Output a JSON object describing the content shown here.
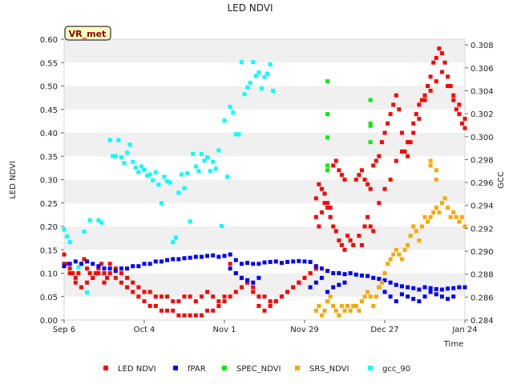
{
  "chart_data": {
    "type": "scatter",
    "title": "LED NDVI",
    "site_label": "VR_met",
    "xlabel": "Time",
    "ylabel_left": "LED NDVI",
    "ylabel_right": "GCC",
    "x_unit": "days since Sep 6",
    "xlim": [
      0,
      140
    ],
    "ylim_left": [
      0.0,
      0.6
    ],
    "ylim_right": [
      0.284,
      0.3085
    ],
    "x_ticks": [
      {
        "label": "Sep 6",
        "day": 0
      },
      {
        "label": "Oct 4",
        "day": 28
      },
      {
        "label": "Nov 1",
        "day": 56
      },
      {
        "label": "Nov 29",
        "day": 84
      },
      {
        "label": "Dec 27",
        "day": 112
      },
      {
        "label": "Jan 24",
        "day": 140
      }
    ],
    "y_ticks_left": [
      0.0,
      0.05,
      0.1,
      0.15,
      0.2,
      0.25,
      0.3,
      0.35,
      0.4,
      0.45,
      0.5,
      0.55,
      0.6
    ],
    "y_ticks_left_labels": [
      "0.00",
      "0.05",
      "0.10",
      "0.15",
      "0.20",
      "0.25",
      "0.30",
      "0.35",
      "0.40",
      "0.45",
      "0.50",
      "0.55",
      "0.60"
    ],
    "y_ticks_right": [
      0.284,
      0.286,
      0.288,
      0.29,
      0.292,
      0.294,
      0.296,
      0.298,
      0.3,
      0.302,
      0.304,
      0.306,
      0.308
    ],
    "y_ticks_right_labels": [
      "0.284",
      "0.286",
      "0.288",
      "0.290",
      "0.292",
      "0.294",
      "0.296",
      "0.298",
      "0.300",
      "0.302",
      "0.304",
      "0.306",
      "0.308"
    ],
    "series": [
      {
        "name": "LED NDVI",
        "color": "#ff0000",
        "axis": "left",
        "x": [
          0,
          1,
          2,
          3,
          4,
          5,
          6,
          7,
          8,
          9,
          10,
          11,
          12,
          13,
          14,
          15,
          0,
          2,
          4,
          6,
          8,
          10,
          12,
          14,
          16,
          18,
          20,
          22,
          24,
          26,
          28,
          30,
          32,
          34,
          36,
          38,
          40,
          42,
          44,
          46,
          48,
          50,
          52,
          54,
          56,
          16,
          18,
          20,
          22,
          24,
          26,
          28,
          30,
          32,
          34,
          36,
          38,
          40,
          42,
          44,
          46,
          48,
          50,
          52,
          54,
          56,
          58,
          60,
          62,
          64,
          66,
          68,
          70,
          72,
          74,
          76,
          78,
          80,
          82,
          84,
          86,
          88,
          58,
          60,
          62,
          64,
          66,
          68,
          70,
          72,
          74,
          76,
          78,
          80,
          82,
          84,
          86,
          88,
          88,
          89,
          90,
          91,
          92,
          93,
          94,
          95,
          96,
          97,
          98,
          88,
          89,
          90,
          91,
          92,
          93,
          94,
          95,
          96,
          97,
          98,
          99,
          100,
          101,
          102,
          103,
          104,
          105,
          106,
          107,
          108,
          109,
          110,
          111,
          112,
          113,
          114,
          115,
          116,
          117,
          118,
          119,
          120,
          121,
          122,
          123,
          124,
          125,
          126,
          127,
          128,
          129,
          130,
          131,
          132,
          133,
          134,
          135,
          136,
          137,
          138,
          139,
          140,
          103,
          104,
          105,
          106,
          107,
          108,
          110,
          112,
          114,
          116,
          118,
          120,
          122,
          124,
          126,
          128,
          130,
          132,
          134,
          136,
          138,
          140
        ],
        "values": [
          0.14,
          0.12,
          0.11,
          0.1,
          0.09,
          0.1,
          0.12,
          0.13,
          0.11,
          0.1,
          0.09,
          0.1,
          0.11,
          0.12,
          0.1,
          0.09,
          0.12,
          0.1,
          0.08,
          0.07,
          0.08,
          0.09,
          0.1,
          0.08,
          0.12,
          0.11,
          0.1,
          0.09,
          0.08,
          0.07,
          0.06,
          0.06,
          0.05,
          0.05,
          0.05,
          0.04,
          0.04,
          0.05,
          0.05,
          0.04,
          0.05,
          0.06,
          0.05,
          0.04,
          0.05,
          0.1,
          0.09,
          0.08,
          0.07,
          0.06,
          0.05,
          0.04,
          0.03,
          0.03,
          0.02,
          0.02,
          0.02,
          0.01,
          0.01,
          0.01,
          0.01,
          0.01,
          0.02,
          0.02,
          0.03,
          0.04,
          0.05,
          0.06,
          0.07,
          0.08,
          0.06,
          0.05,
          0.05,
          0.04,
          0.04,
          0.05,
          0.06,
          0.07,
          0.08,
          0.09,
          0.1,
          0.11,
          0.12,
          0.1,
          0.09,
          0.08,
          0.07,
          0.03,
          0.02,
          0.03,
          0.04,
          0.05,
          0.06,
          0.07,
          0.08,
          0.09,
          0.1,
          0.11,
          0.26,
          0.29,
          0.28,
          0.27,
          0.25,
          0.24,
          0.33,
          0.34,
          0.32,
          0.31,
          0.3,
          0.22,
          0.2,
          0.23,
          0.25,
          0.24,
          0.22,
          0.2,
          0.19,
          0.17,
          0.16,
          0.15,
          0.18,
          0.17,
          0.16,
          0.3,
          0.31,
          0.32,
          0.3,
          0.29,
          0.28,
          0.33,
          0.34,
          0.35,
          0.38,
          0.4,
          0.42,
          0.44,
          0.46,
          0.48,
          0.45,
          0.4,
          0.36,
          0.35,
          0.38,
          0.42,
          0.44,
          0.46,
          0.47,
          0.48,
          0.5,
          0.52,
          0.55,
          0.56,
          0.58,
          0.57,
          0.55,
          0.52,
          0.5,
          0.47,
          0.45,
          0.44,
          0.42,
          0.41,
          0.18,
          0.16,
          0.2,
          0.22,
          0.2,
          0.19,
          0.25,
          0.28,
          0.3,
          0.34,
          0.36,
          0.38,
          0.4,
          0.43,
          0.47,
          0.49,
          0.51,
          0.53,
          0.5,
          0.48,
          0.46,
          0.43
        ]
      },
      {
        "name": "fPAR",
        "color": "#0000ff",
        "axis": "left",
        "x": [
          0,
          2,
          4,
          6,
          8,
          10,
          12,
          14,
          16,
          18,
          20,
          22,
          24,
          26,
          28,
          30,
          32,
          34,
          36,
          38,
          40,
          42,
          44,
          46,
          48,
          50,
          52,
          54,
          56,
          58,
          60,
          62,
          64,
          66,
          68,
          70,
          72,
          74,
          76,
          78,
          80,
          82,
          84,
          86,
          88,
          90,
          92,
          94,
          96,
          98,
          100,
          102,
          104,
          106,
          108,
          110,
          112,
          114,
          116,
          118,
          120,
          122,
          124,
          126,
          128,
          130,
          132,
          134,
          136,
          138,
          140,
          58,
          60,
          62,
          64,
          66,
          68,
          86,
          88,
          90,
          92,
          94,
          96,
          98,
          110,
          112,
          114,
          116,
          118,
          120,
          122,
          124,
          126,
          128,
          130,
          132,
          134,
          136
        ],
        "values": [
          0.115,
          0.12,
          0.125,
          0.12,
          0.125,
          0.12,
          0.115,
          0.11,
          0.11,
          0.105,
          0.11,
          0.11,
          0.115,
          0.115,
          0.12,
          0.12,
          0.125,
          0.125,
          0.128,
          0.13,
          0.13,
          0.132,
          0.133,
          0.135,
          0.135,
          0.137,
          0.138,
          0.135,
          0.137,
          0.14,
          0.128,
          0.12,
          0.122,
          0.12,
          0.12,
          0.123,
          0.124,
          0.125,
          0.122,
          0.124,
          0.125,
          0.126,
          0.125,
          0.124,
          0.115,
          0.11,
          0.105,
          0.1,
          0.1,
          0.098,
          0.1,
          0.097,
          0.095,
          0.094,
          0.09,
          0.088,
          0.085,
          0.08,
          0.075,
          0.072,
          0.07,
          0.068,
          0.065,
          0.07,
          0.068,
          0.066,
          0.065,
          0.067,
          0.068,
          0.07,
          0.07,
          0.11,
          0.1,
          0.09,
          0.085,
          0.08,
          0.09,
          0.07,
          0.08,
          0.09,
          0.06,
          0.07,
          0.075,
          0.08,
          0.07,
          0.06,
          0.05,
          0.04,
          0.055,
          0.05,
          0.045,
          0.04,
          0.05,
          0.06,
          0.055,
          0.05,
          0.045,
          0.05
        ]
      },
      {
        "name": "SPEC_NDVI",
        "color": "#00ee00",
        "axis": "left",
        "x": [
          92,
          92,
          92,
          92,
          92,
          107,
          107,
          107,
          107
        ],
        "values": [
          0.51,
          0.44,
          0.39,
          0.33,
          0.32,
          0.47,
          0.42,
          0.415,
          0.38
        ]
      },
      {
        "name": "SRS_NDVI",
        "color": "#ffa500",
        "axis": "left",
        "x": [
          88,
          89,
          90,
          91,
          92,
          93,
          94,
          95,
          96,
          97,
          98,
          99,
          100,
          101,
          102,
          103,
          104,
          105,
          106,
          107,
          108,
          109,
          110,
          111,
          112,
          113,
          114,
          115,
          116,
          117,
          118,
          119,
          120,
          121,
          122,
          123,
          124,
          125,
          126,
          127,
          128,
          129,
          130,
          131,
          132,
          133,
          134,
          135,
          136,
          137,
          138,
          139,
          140,
          128,
          128,
          130,
          130
        ],
        "values": [
          0.02,
          0.03,
          0.01,
          0.02,
          0.04,
          0.05,
          0.03,
          0.02,
          0.01,
          0.03,
          0.02,
          0.03,
          0.02,
          0.03,
          0.03,
          0.02,
          0.04,
          0.05,
          0.06,
          0.05,
          0.03,
          0.05,
          0.07,
          0.08,
          0.1,
          0.12,
          0.13,
          0.14,
          0.15,
          0.14,
          0.13,
          0.15,
          0.16,
          0.18,
          0.2,
          0.19,
          0.17,
          0.2,
          0.22,
          0.21,
          0.22,
          0.23,
          0.24,
          0.23,
          0.25,
          0.26,
          0.24,
          0.22,
          0.23,
          0.22,
          0.21,
          0.22,
          0.2,
          0.33,
          0.34,
          0.32,
          0.3
        ]
      },
      {
        "name": "gcc_90",
        "color": "#00ffff",
        "axis": "right",
        "x": [
          0,
          1,
          2,
          5,
          7,
          8,
          9,
          12,
          13,
          16,
          17,
          18,
          19,
          20,
          21,
          22,
          23,
          24,
          25,
          26,
          27,
          28,
          29,
          30,
          31,
          32,
          33,
          34,
          35,
          36,
          37,
          38,
          39,
          40,
          41,
          42,
          43,
          44,
          45,
          46,
          47,
          48,
          49,
          50,
          51,
          52,
          53,
          54,
          55,
          56,
          57,
          58,
          59,
          60,
          61,
          62,
          63,
          64,
          65,
          66,
          67,
          68,
          69,
          70,
          71,
          72,
          73
        ],
        "values": [
          0.2919,
          0.2913,
          0.2908,
          0.2886,
          0.2917,
          0.2864,
          0.2927,
          0.2927,
          0.2925,
          0.2997,
          0.2983,
          0.2983,
          0.2997,
          0.2982,
          0.2977,
          0.2986,
          0.2993,
          0.2978,
          0.2973,
          0.2969,
          0.2974,
          0.2971,
          0.2966,
          0.2967,
          0.2962,
          0.2969,
          0.2958,
          0.2942,
          0.2965,
          0.2961,
          0.296,
          0.2908,
          0.2912,
          0.2951,
          0.2967,
          0.2955,
          0.2968,
          0.2926,
          0.2985,
          0.2974,
          0.297,
          0.2985,
          0.2979,
          0.2982,
          0.297,
          0.2978,
          0.2972,
          0.2988,
          0.2922,
          0.3014,
          0.2965,
          0.3026,
          0.3021,
          0.3002,
          0.3002,
          0.3065,
          0.3037,
          0.3043,
          0.3047,
          0.3065,
          0.3053,
          0.3056,
          0.3042,
          0.3052,
          0.3055,
          0.3063,
          0.304
        ]
      }
    ],
    "legend": [
      {
        "label": "LED NDVI",
        "color": "#ff0000"
      },
      {
        "label": "fPAR",
        "color": "#0000ff"
      },
      {
        "label": "SPEC_NDVI",
        "color": "#00ee00"
      },
      {
        "label": "SRS_NDVI",
        "color": "#ffa500"
      },
      {
        "label": "gcc_90",
        "color": "#00ffff"
      }
    ],
    "legend_position": "bottom",
    "grid": "horizontal alternating bands"
  }
}
